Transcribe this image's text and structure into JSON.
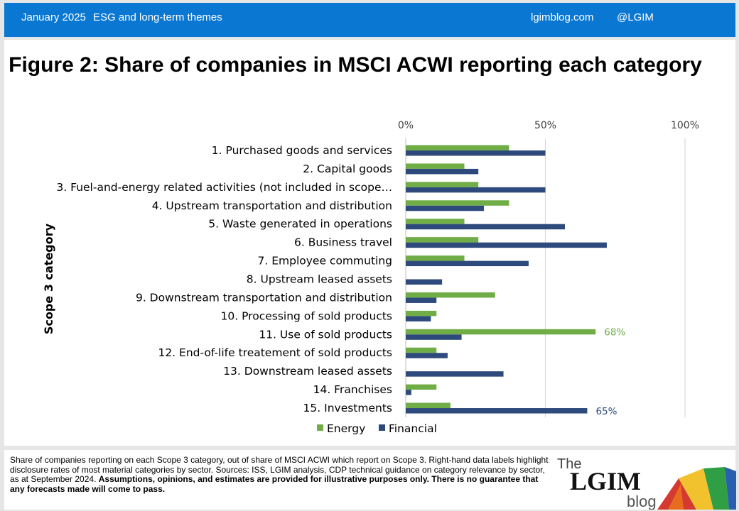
{
  "header": {
    "date": "January 2025",
    "section": "ESG and long-term themes",
    "site": "lgimblog.com",
    "handle": "@LGIM"
  },
  "colors": {
    "header_bg": "#0a78d2",
    "energy": "#70ad47",
    "financial": "#2e4a7d",
    "grid": "#d9d9d9"
  },
  "chart_data": {
    "type": "bar",
    "orientation": "horizontal",
    "title": "Figure 2: Share of companies in MSCI ACWI reporting each category",
    "xlabel": "",
    "ylabel": "Scope 3 category",
    "xlim": [
      0,
      100
    ],
    "x_ticks": [
      "0%",
      "50%",
      "100%"
    ],
    "x_tick_values": [
      0,
      50,
      100
    ],
    "x_axis_position": "top",
    "grid": true,
    "legend_position": "bottom",
    "categories": [
      "1. Purchased goods and services",
      "2. Capital goods",
      "3. Fuel-and-energy related activities (not included in scope…",
      "4. Upstream transportation and distribution",
      "5. Waste generated in operations",
      "6. Business travel",
      "7. Employee commuting",
      "8. Upstream leased assets",
      "9. Downstream transportation and distribution",
      "10. Processing of sold products",
      "11. Use of sold products",
      "12. End-of-life treatement of sold products",
      "13. Downstream leased assets",
      "14. Franchises",
      "15. Investments"
    ],
    "series": [
      {
        "name": "Energy",
        "color": "#70ad47",
        "values": [
          37,
          21,
          26,
          37,
          21,
          26,
          21,
          0,
          32,
          11,
          68,
          11,
          0,
          11,
          16
        ],
        "data_labels": [
          null,
          null,
          null,
          null,
          null,
          null,
          null,
          null,
          null,
          null,
          "68%",
          null,
          null,
          null,
          null
        ]
      },
      {
        "name": "Financial",
        "color": "#2e4a7d",
        "values": [
          50,
          26,
          50,
          28,
          57,
          72,
          44,
          13,
          11,
          9,
          20,
          15,
          35,
          2,
          65
        ],
        "data_labels": [
          null,
          null,
          null,
          null,
          null,
          null,
          null,
          null,
          null,
          null,
          null,
          null,
          null,
          null,
          "65%"
        ]
      }
    ]
  },
  "footnote": {
    "text": "Share of companies reporting on each Scope 3 category, out of share of MSCI ACWI which report on Scope 3. Right-hand data labels highlight disclosure rates of most material categories by sector. Sources: ISS, LGIM analysis, CDP technical guidance on category relevance by sector, as at September 2024. ",
    "bold": "Assumptions, opinions, and estimates are provided for illustrative purposes only. There is no guarantee that any forecasts made will come to pass."
  },
  "logo": {
    "the": "The",
    "name": "LGIM",
    "blog": "blog"
  }
}
